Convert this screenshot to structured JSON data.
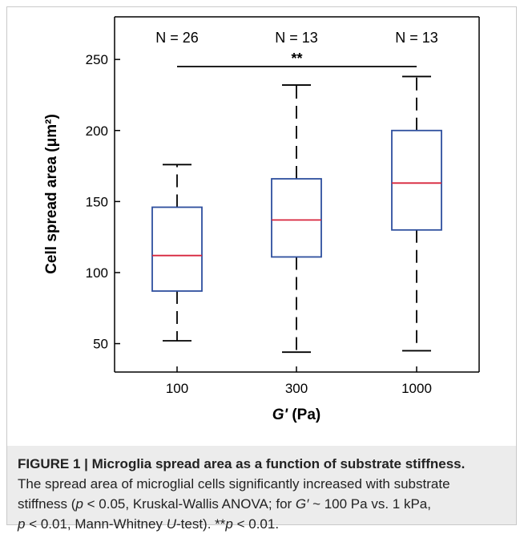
{
  "figure": {
    "caption_title": "FIGURE 1 | Microglia spread area as a function of substrate stiffness.",
    "caption_line1": "The spread area of microglial cells significantly increased with substrate",
    "caption_line2_parts": [
      "stiffness (",
      "p",
      " < 0.05, Kruskal-Wallis ANOVA; for ",
      "G′",
      " ~ 100 Pa vs. 1 kPa,"
    ],
    "caption_line3_parts": [
      "p",
      " < 0.01, Mann-Whitney ",
      "U",
      "-test). **",
      "p",
      " < 0.01."
    ]
  },
  "chart_data": {
    "type": "box",
    "categories": [
      "100",
      "300",
      "1000"
    ],
    "boxes": [
      {
        "category": "100",
        "whisker_low": 52,
        "q1": 87,
        "median": 112,
        "q3": 146,
        "whisker_high": 176,
        "n_label": "N = 26"
      },
      {
        "category": "300",
        "whisker_low": 44,
        "q1": 111,
        "median": 137,
        "q3": 166,
        "whisker_high": 232,
        "n_label": "N = 13"
      },
      {
        "category": "1000",
        "whisker_low": 45,
        "q1": 130,
        "median": 163,
        "q3": 200,
        "whisker_high": 238,
        "n_label": "N = 13"
      }
    ],
    "xlabel_italic": "G'",
    "xlabel_rest": " (Pa)",
    "ylabel": "Cell spread area (μm²)",
    "ylim": [
      30,
      280
    ],
    "yticks": [
      50,
      100,
      150,
      200,
      250
    ],
    "significance": {
      "from": "100",
      "to": "1000",
      "y": 245,
      "label": "**"
    },
    "colors": {
      "box": "#2e4f9e",
      "median": "#d7263d",
      "whisker": "#000000"
    }
  }
}
